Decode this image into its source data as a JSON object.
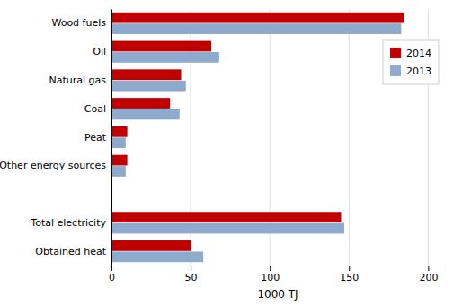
{
  "chart_data": {
    "type": "bar",
    "orientation": "horizontal",
    "categories": [
      "Wood fuels",
      "Oil",
      "Natural gas",
      "Coal",
      "Peat",
      "Other energy sources",
      null,
      "Total electricity",
      "Obtained heat"
    ],
    "series": [
      {
        "name": "2014",
        "color": "#c00000",
        "values": [
          185,
          63,
          44,
          37,
          10,
          10,
          0,
          145,
          50
        ]
      },
      {
        "name": "2013",
        "color": "#8eaacc",
        "values": [
          183,
          68,
          47,
          43,
          9,
          9,
          0,
          147,
          58
        ]
      }
    ],
    "x_label": "1000 TJ",
    "xlim": [
      0,
      210
    ],
    "xticks": [
      0,
      50,
      100,
      150,
      200
    ],
    "grid": true,
    "legend": "upper right"
  }
}
